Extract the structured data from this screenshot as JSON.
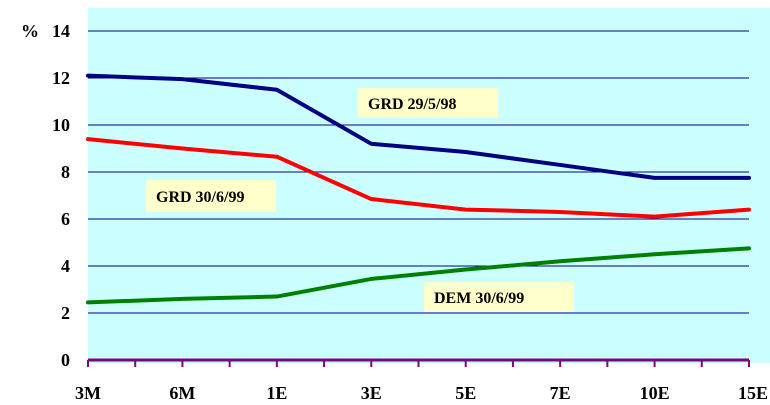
{
  "chart_data": {
    "type": "line",
    "title": "",
    "xlabel": "",
    "ylabel": "%",
    "categories": [
      "3M",
      "6M",
      "1E",
      "3E",
      "5E",
      "7E",
      "10E",
      "15E"
    ],
    "ylim": [
      0,
      14
    ],
    "yticks": [
      0,
      2,
      4,
      6,
      8,
      10,
      12,
      14
    ],
    "grid": "horizontal",
    "series": [
      {
        "name": "GRD 29/5/98",
        "color": "#000080",
        "values": [
          12.1,
          11.95,
          11.5,
          9.2,
          8.85,
          8.3,
          7.75,
          7.75
        ]
      },
      {
        "name": "GRD 30/6/99",
        "color": "#ff0000",
        "values": [
          9.4,
          9.0,
          8.65,
          6.85,
          6.4,
          6.3,
          6.1,
          6.4
        ]
      },
      {
        "name": "DEM 30/6/99",
        "color": "#008000",
        "values": [
          2.45,
          2.6,
          2.7,
          3.45,
          3.85,
          4.2,
          4.5,
          4.75
        ]
      }
    ],
    "annotations": [
      {
        "text": "GRD 29/5/98",
        "series": 0
      },
      {
        "text": "GRD 30/6/99",
        "series": 1
      },
      {
        "text": "DEM 30/6/99",
        "series": 2
      }
    ],
    "colors": {
      "plot_background": "#ccffff",
      "gridline": "#000080",
      "x_axis": "#800080",
      "annotation_background": "#ffffcc"
    }
  }
}
